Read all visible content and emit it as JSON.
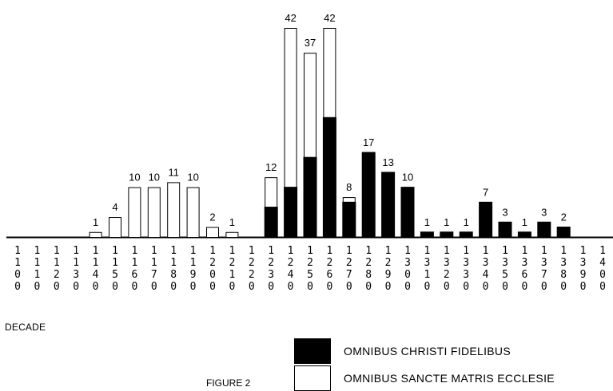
{
  "chart_data": {
    "type": "bar",
    "stacked": true,
    "title": "",
    "xlabel": "DECADE",
    "ylabel": "",
    "caption": "FIGURE 2",
    "categories": [
      "1100",
      "1110",
      "1120",
      "1130",
      "1140",
      "1150",
      "1160",
      "1170",
      "1180",
      "1190",
      "1200",
      "1210",
      "1220",
      "1230",
      "1240",
      "1250",
      "1260",
      "1270",
      "1280",
      "1290",
      "1300",
      "1310",
      "1320",
      "1330",
      "1340",
      "1350",
      "1360",
      "1370",
      "1380",
      "1390",
      "1400"
    ],
    "totals": [
      0,
      0,
      0,
      0,
      1,
      4,
      10,
      10,
      11,
      10,
      2,
      1,
      0,
      12,
      42,
      37,
      42,
      8,
      17,
      13,
      10,
      1,
      1,
      1,
      7,
      3,
      1,
      3,
      2,
      0,
      0
    ],
    "series": [
      {
        "name": "OMNIBUS CHRISTI FIDELIBUS",
        "color": "#000000",
        "values": [
          0,
          0,
          0,
          0,
          0,
          0,
          0,
          0,
          0,
          0,
          0,
          0,
          0,
          6,
          10,
          16,
          24,
          7,
          17,
          13,
          10,
          1,
          1,
          1,
          7,
          3,
          1,
          3,
          2,
          0,
          0
        ]
      },
      {
        "name": "OMNIBUS SANCTE MATRIS ECCLESIE",
        "color": "#ffffff",
        "values": [
          0,
          0,
          0,
          0,
          1,
          4,
          10,
          10,
          11,
          10,
          2,
          1,
          0,
          6,
          32,
          21,
          18,
          1,
          0,
          0,
          0,
          0,
          0,
          0,
          0,
          0,
          0,
          0,
          0,
          0,
          0
        ]
      }
    ],
    "ylim": [
      0,
      42
    ],
    "grid": false,
    "legend_position": "bottom-right"
  }
}
